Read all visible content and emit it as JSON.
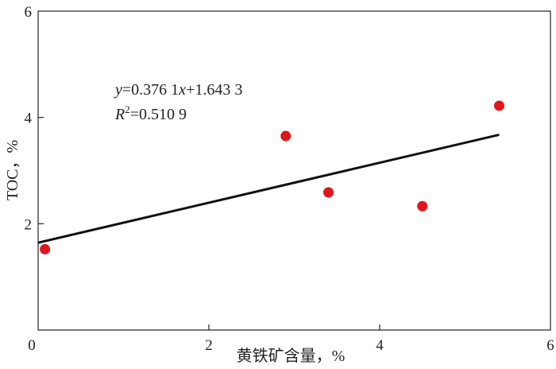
{
  "chart_data": {
    "type": "scatter",
    "title": "",
    "xlabel": "黄铁矿含量，%",
    "ylabel": "TOC，%",
    "xlim": [
      0,
      6
    ],
    "ylim": [
      0,
      6
    ],
    "x_ticks": [
      "0",
      "2",
      "4",
      "6"
    ],
    "y_ticks": [
      "2",
      "4",
      "6"
    ],
    "grid": false,
    "points": [
      {
        "x": 0.08,
        "y": 1.52
      },
      {
        "x": 2.9,
        "y": 3.65
      },
      {
        "x": 3.4,
        "y": 2.59
      },
      {
        "x": 4.5,
        "y": 2.33
      },
      {
        "x": 5.4,
        "y": 4.22
      }
    ],
    "point_color": "#e0161b",
    "trendline": {
      "slope": 0.3761,
      "intercept": 1.6433,
      "x_range": [
        0,
        5.4
      ],
      "color": "#111111",
      "equation_y": "y",
      "equation_rest": "=0.376 1",
      "equation_x": "x",
      "equation_tail": "+1.643 3",
      "r2_label": "R",
      "r2_sup": "2",
      "r2_value": "=0.510 9"
    }
  }
}
